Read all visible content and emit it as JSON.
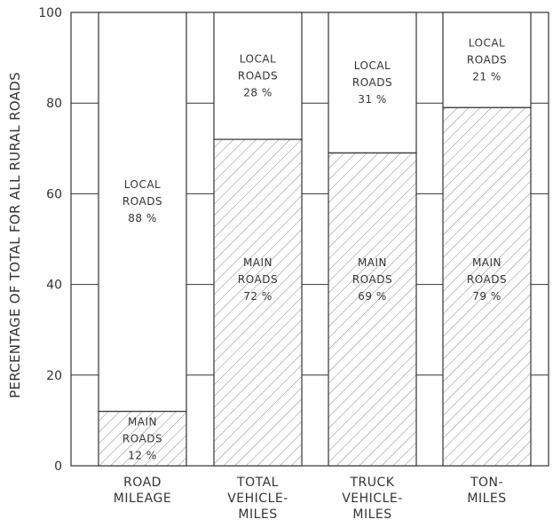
{
  "chart_data": {
    "type": "bar",
    "stacked": true,
    "ylabel": "PERCENTAGE OF TOTAL FOR ALL RURAL ROADS",
    "ylim": [
      0,
      100
    ],
    "yticks": [
      "0",
      "20",
      "40",
      "60",
      "80",
      "100"
    ],
    "categories": [
      [
        "ROAD",
        "MILEAGE"
      ],
      [
        "TOTAL",
        "VEHICLE-",
        "MILES"
      ],
      [
        "TRUCK",
        "VEHICLE-",
        "MILES"
      ],
      [
        "TON-",
        "MILES"
      ]
    ],
    "series": [
      {
        "name": "MAIN ROADS",
        "values": [
          12,
          72,
          69,
          79
        ],
        "pattern": "hatched"
      },
      {
        "name": "LOCAL ROADS",
        "values": [
          88,
          28,
          31,
          21
        ],
        "pattern": "plain"
      }
    ],
    "segment_labels": {
      "main": [
        [
          "MAIN",
          "ROADS",
          "12 %"
        ],
        [
          "MAIN",
          "ROADS",
          "72 %"
        ],
        [
          "MAIN",
          "ROADS",
          "69 %"
        ],
        [
          "MAIN",
          "ROADS",
          "79 %"
        ]
      ],
      "local": [
        [
          "LOCAL",
          "ROADS",
          "88 %"
        ],
        [
          "LOCAL",
          "ROADS",
          "28 %"
        ],
        [
          "LOCAL",
          "ROADS",
          "31 %"
        ],
        [
          "LOCAL",
          "ROADS",
          "21 %"
        ]
      ]
    },
    "grid": true,
    "legend": "none",
    "colors": {
      "ink": "#333333",
      "hatch": "#777777",
      "background": "#ffffff"
    }
  }
}
